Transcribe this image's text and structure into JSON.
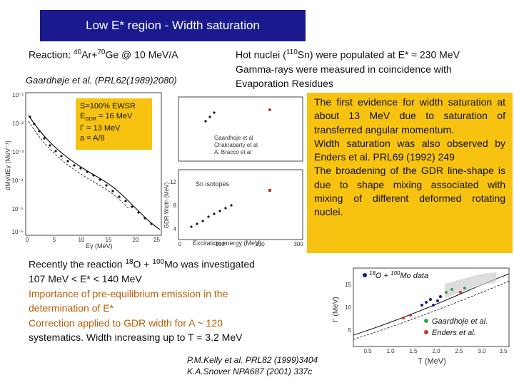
{
  "slide": {
    "title": "Low E* region -  Width saturation",
    "reaction_prefix": "Reaction:  ",
    "reaction_mass1": "40",
    "reaction_nucleus1": "Ar+",
    "reaction_mass2": "70",
    "reaction_nucleus2": "Ge @ 10 MeV/A",
    "ref_top": "Gaardhøje et al. (PRL62(1989)2080)",
    "hot_line1_a": "Hot nuclei (",
    "hot_line1_sup": "110",
    "hot_line1_b": "Sn) were populated at E* ≈  230 MeV",
    "hot_line2": "Gamma-rays were measured in coincidence with",
    "hot_line3": "Evaporation Residues",
    "yellow_p1": "The first evidence for width saturation at about 13 MeV due to saturation of transferred angular momentum.",
    "yellow_p2": "Width saturation was also observed by Enders et al. PRL69 (1992) 249",
    "yellow_p3": "The broadening of the GDR line-shape is due to shape mixing associated with mixing of different deformed rotating nuclei.",
    "ewsr_s": "S=100% EWSR",
    "ewsr_e_prefix": "E",
    "ewsr_e_sub": "GDR",
    "ewsr_e_value": " = 16 MeV",
    "ewsr_gamma": "Γ = 13 MeV",
    "ewsr_a": "a = A/8",
    "recent_line1_a": "Recently the reaction ",
    "recent_line1_sup1": "18",
    "recent_line1_b": "O + ",
    "recent_line1_sup2": "100",
    "recent_line1_c": "Mo was investigated",
    "recent_line2": "107 MeV < E* < 140 MeV",
    "recent_line3": "Importance of pre-equilibrium emission in the",
    "recent_line4": "determination of E*",
    "recent_line5": "Correction applied to GDR width for A ~ 120",
    "recent_line6": "systematics. Width increasing up to T = 3.2 MeV",
    "cite1": "P.M.Kelly et al. PRL82 (1999)3404",
    "cite2": "K.A.Snover NPA687 (2001) 337c"
  },
  "left_plot": {
    "ylabel": "dMγ/dEγ (MeV⁻¹)",
    "xlabel": "Eγ (MeV)",
    "yticks": [
      "10⁻¹",
      "10⁻²",
      "10⁻³",
      "10⁻⁴",
      "10⁻⁵",
      "10⁻⁶"
    ],
    "xticks": [
      "0",
      "5",
      "10",
      "15",
      "20",
      "25"
    ]
  },
  "right_plot": {
    "ylabel": "GDR Width (MeV)",
    "xlabel": "Excitation energy (MeV)",
    "legend": [
      "Gaardhoje et al",
      "Chakrabarty et al",
      "A. Bracco et al"
    ],
    "label": "Sn isotopes",
    "yticks": [
      "12",
      "8",
      "4"
    ],
    "xticks": [
      "0",
      "100",
      "200",
      "300"
    ]
  },
  "bottom_plot": {
    "ylabel": "Γ (MeV)",
    "xlabel": "T (MeV)",
    "legend_a_sup": "18",
    "legend_a_mid": "O + ",
    "legend_a_sup2": "100",
    "legend_a_end": "Mo data",
    "legend_b": "Gaardhoje et al.",
    "legend_c": "Enders et al.",
    "yticks": [
      "15",
      "10",
      "5"
    ],
    "xticks": [
      "0.5",
      "1.0",
      "1.5",
      "2.0",
      "2.5",
      "3.0",
      "3.5"
    ],
    "colors": {
      "mo_data": "#1a1a8e",
      "gaardhoje": "#2fa84f",
      "enders": "#c0392b"
    }
  }
}
